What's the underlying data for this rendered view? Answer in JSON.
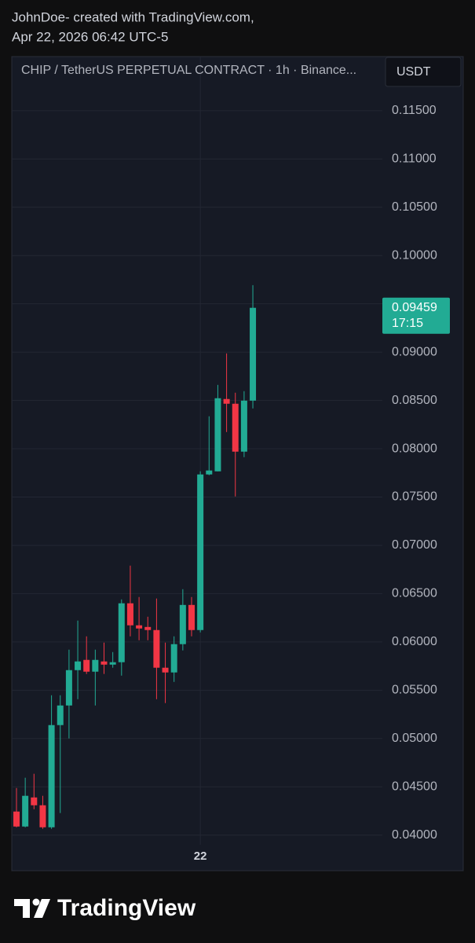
{
  "header": {
    "line1": "JohnDoe- created with TradingView.com,",
    "line2": "Apr 22, 2026 06:42 UTC-5"
  },
  "chart_data": {
    "type": "candlestick",
    "title": "CHIP / TetherUS PERPETUAL CONTRACT · 1h · Binance...",
    "currency": "USDT",
    "categories": [
      null,
      null,
      null,
      null,
      null,
      null,
      null,
      null,
      null,
      null,
      null,
      null,
      null,
      null,
      null,
      null,
      null,
      null,
      null,
      null,
      null,
      "22",
      null,
      null,
      null,
      null,
      null,
      null
    ],
    "open": [
      0.04244,
      0.04089,
      0.0439,
      0.04309,
      0.04081,
      0.05139,
      0.05342,
      0.05708,
      0.05814,
      0.05692,
      0.05798,
      0.05765,
      0.0579,
      0.064,
      0.06172,
      0.06155,
      0.06123,
      0.05733,
      0.05684,
      0.05977,
      0.06383,
      0.06123,
      0.07734,
      0.07766,
      0.08515,
      0.08466,
      0.0797,
      0.08498
    ],
    "high": [
      0.04488,
      0.04594,
      0.04635,
      0.04407,
      0.05448,
      0.05448,
      0.0592,
      0.06221,
      0.06058,
      0.0592,
      0.05993,
      0.05895,
      0.0644,
      0.0679,
      0.06465,
      0.06261,
      0.06449,
      0.05993,
      0.06058,
      0.06546,
      0.06465,
      0.07766,
      0.08336,
      0.08661,
      0.08987,
      0.0858,
      0.08596,
      0.09694
    ],
    "low": [
      0.04081,
      0.04081,
      0.04268,
      0.04065,
      0.04065,
      0.04228,
      0.05001,
      0.05407,
      0.05668,
      0.05342,
      0.05668,
      0.05733,
      0.05651,
      0.06058,
      0.06017,
      0.06017,
      0.05407,
      0.05367,
      0.05586,
      0.05912,
      0.06058,
      0.06099,
      0.07726,
      0.07766,
      0.08173,
      0.07506,
      0.07913,
      0.08417
    ],
    "close": [
      0.04089,
      0.04407,
      0.04309,
      0.04081,
      0.05139,
      0.05342,
      0.05708,
      0.05798,
      0.05692,
      0.05814,
      0.05765,
      0.0579,
      0.064,
      0.06172,
      0.06139,
      0.06123,
      0.05733,
      0.05684,
      0.05977,
      0.06383,
      0.06123,
      0.07734,
      0.07775,
      0.08523,
      0.08466,
      0.0797,
      0.08498,
      0.09459
    ],
    "up_color": "#22ab94",
    "down_color": "#f23645",
    "last_price": 0.09459,
    "countdown": "17:15",
    "ylim": [
      0.039,
      0.1206
    ],
    "yticks": [
      {
        "value": 0.115,
        "label": "0.11500"
      },
      {
        "value": 0.11,
        "label": "0.11000"
      },
      {
        "value": 0.105,
        "label": "0.10500"
      },
      {
        "value": 0.1,
        "label": "0.10000"
      },
      {
        "value": 0.095,
        "label": "0.09500"
      },
      {
        "value": 0.09,
        "label": "0.09000"
      },
      {
        "value": 0.085,
        "label": "0.08500"
      },
      {
        "value": 0.08,
        "label": "0.08000"
      },
      {
        "value": 0.075,
        "label": "0.07500"
      },
      {
        "value": 0.07,
        "label": "0.07000"
      },
      {
        "value": 0.065,
        "label": "0.06500"
      },
      {
        "value": 0.06,
        "label": "0.06000"
      },
      {
        "value": 0.055,
        "label": "0.05500"
      },
      {
        "value": 0.05,
        "label": "0.05000"
      },
      {
        "value": 0.045,
        "label": "0.04500"
      },
      {
        "value": 0.04,
        "label": "0.04000"
      }
    ],
    "grid": true
  },
  "footer": {
    "brand": "TradingView"
  }
}
